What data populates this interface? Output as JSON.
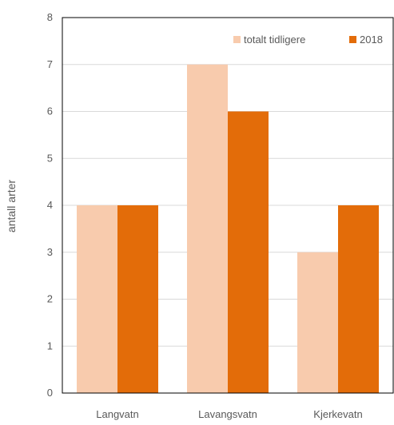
{
  "chart_data": {
    "type": "bar",
    "title": "",
    "xlabel": "",
    "ylabel": "antall arter",
    "categories": [
      "Langvatn",
      "Lavangsvatn",
      "Kjerkevatn"
    ],
    "series": [
      {
        "name": "totalt tidligere",
        "values": [
          4,
          7,
          3
        ],
        "color": "#F8CBAD"
      },
      {
        "name": "2018",
        "values": [
          4,
          6,
          4
        ],
        "color": "#E36C09"
      }
    ],
    "ylim": [
      0,
      8
    ],
    "yticks": [
      0,
      1,
      2,
      3,
      4,
      5,
      6,
      7,
      8
    ],
    "grid": true,
    "legend_position": "top-right",
    "colors": {
      "gridline": "#D9D9D9",
      "frame": "#000000",
      "text": "#595959"
    }
  }
}
